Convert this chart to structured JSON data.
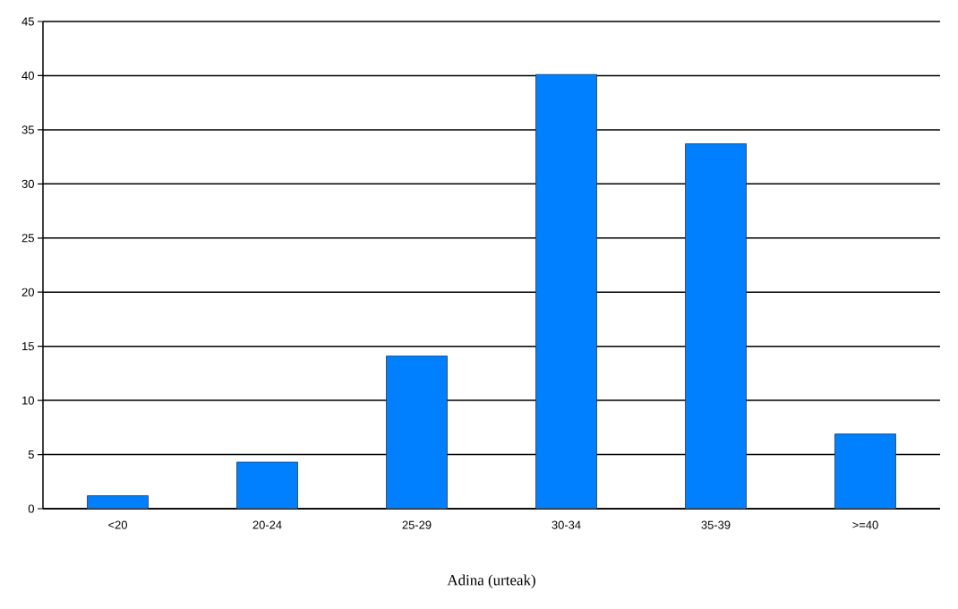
{
  "chart_data": {
    "type": "bar",
    "xlabel": "Adina (urteak)",
    "categories": [
      "<20",
      "20-24",
      "25-29",
      "30-34",
      "35-39",
      ">=40"
    ],
    "values": [
      1.2,
      4.3,
      14.1,
      40.1,
      33.7,
      6.9
    ],
    "color": "#0080ff",
    "ylim": [
      0,
      45
    ],
    "yticks": [
      0,
      5,
      10,
      15,
      20,
      25,
      30,
      35,
      40,
      45
    ],
    "grid": "y"
  }
}
